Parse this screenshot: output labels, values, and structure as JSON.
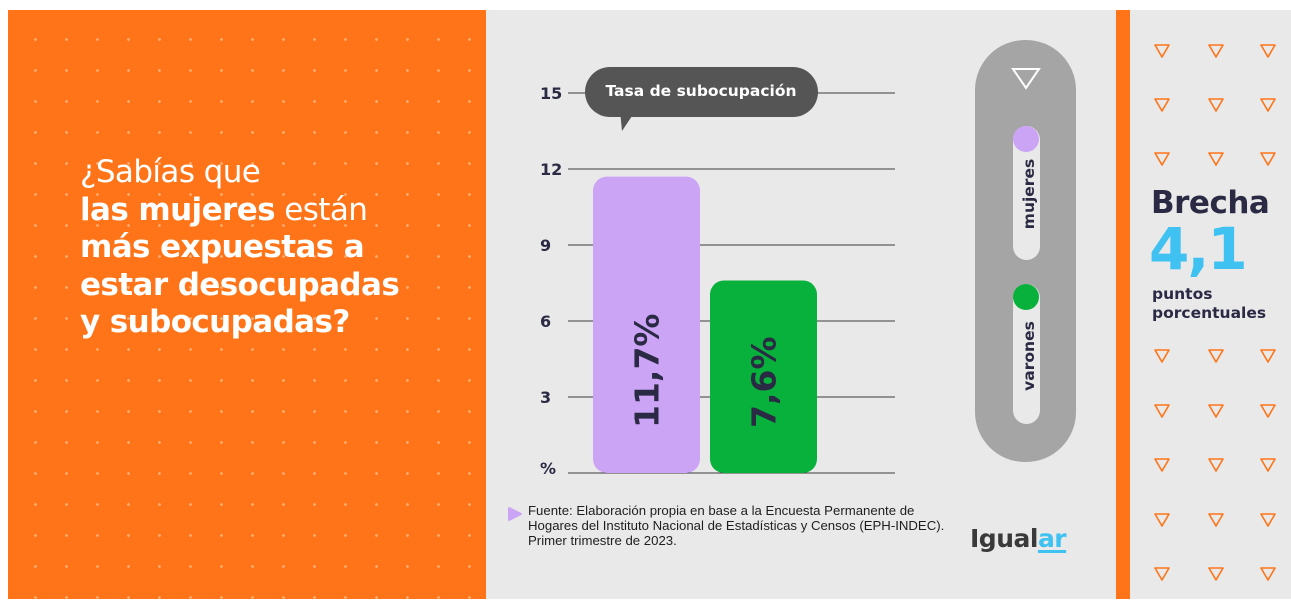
{
  "headline": {
    "line1": "¿Sabías que",
    "line2_bold": "las mujeres",
    "line2_rest": " están",
    "line3": "más expuestas a",
    "line4": "estar desocupadas",
    "line5": "y subocupadas?"
  },
  "chart_data": {
    "type": "bar",
    "title": "Tasa de subocupación",
    "ylabel": "%",
    "categories": [
      "mujeres",
      "varones"
    ],
    "values": [
      11.7,
      7.6
    ],
    "value_labels": [
      "11,7%",
      "7,6%"
    ],
    "colors": [
      "#cba4f5",
      "#08b13b"
    ],
    "yticks": [
      3,
      6,
      9,
      12,
      15
    ],
    "ylim": [
      0,
      15
    ],
    "grid": true,
    "legend": {
      "placement": "right",
      "items": [
        {
          "label": "mujeres",
          "color": "#cba4f5"
        },
        {
          "label": "varones",
          "color": "#08b13b"
        }
      ]
    }
  },
  "gap": {
    "label": "Brecha",
    "value": "4,1",
    "unit_line1": "puntos",
    "unit_line2": "porcentuales"
  },
  "source": "Fuente: Elaboración propia en base a la Encuesta Permanente de Hogares del Instituto Nacional de Estadísticas y Censos (EPH-INDEC). Primer trimestre de 2023.",
  "logo": {
    "main": "Igual",
    "accent": "ar"
  },
  "colors": {
    "orange": "#ff7418",
    "panel_gray": "#e9e9e9",
    "dark_text": "#2a2a44",
    "accent_blue": "#3fc1f2",
    "pill_gray": "#a5a5a5",
    "bubble_dark": "#555555"
  },
  "icons": {
    "legend_marker": "triangle-down-outline-icon",
    "source_bullet": "play-bullet-icon"
  }
}
